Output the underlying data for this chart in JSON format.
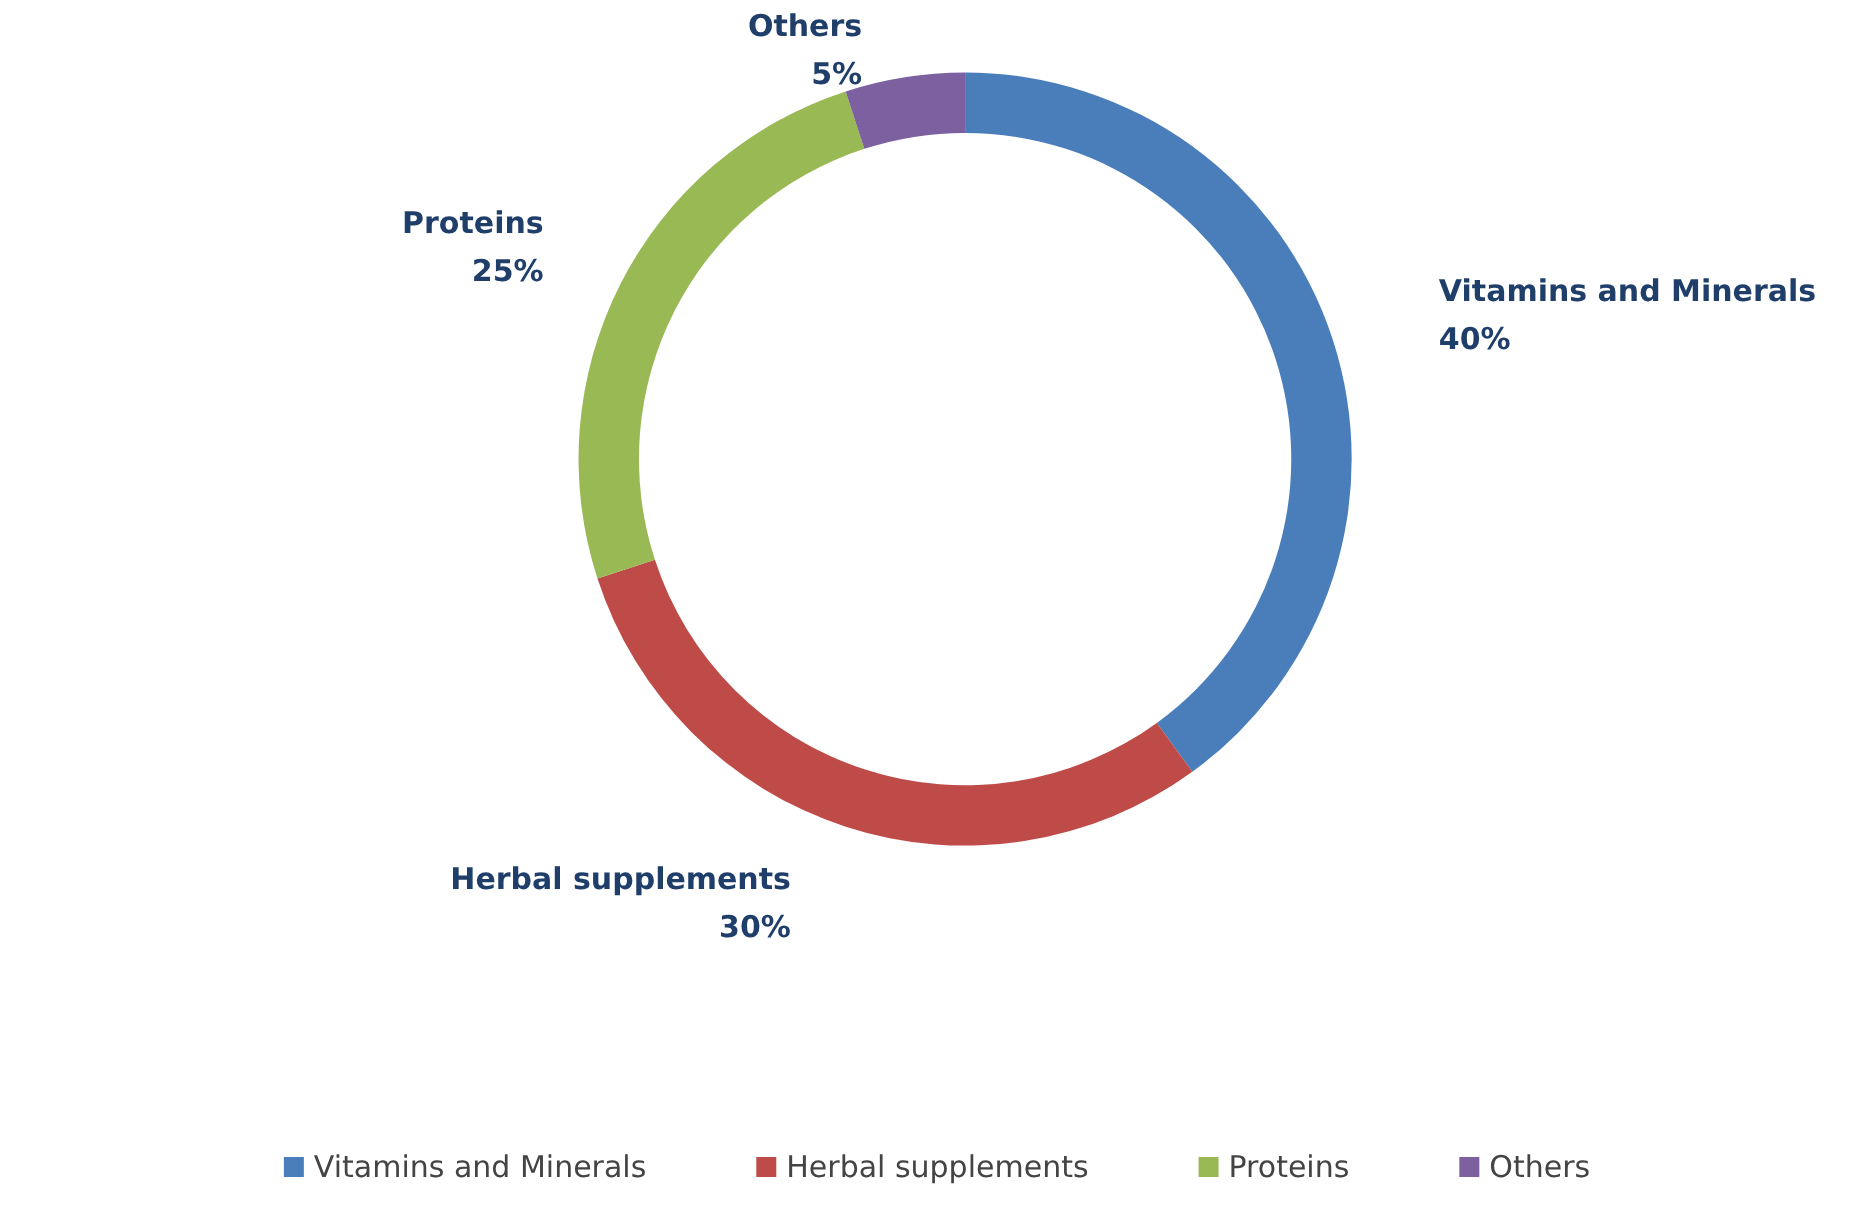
{
  "chart_data": {
    "type": "donut",
    "categories": [
      "Vitamins and Minerals",
      "Herbal supplements",
      "Proteins",
      "Others"
    ],
    "values": [
      40,
      30,
      25,
      5
    ],
    "value_labels": [
      "40%",
      "30%",
      "25%",
      "5%"
    ],
    "colors": [
      "#4a7ebb",
      "#be4b48",
      "#98b954",
      "#7d60a0"
    ],
    "legend": "bottom"
  }
}
